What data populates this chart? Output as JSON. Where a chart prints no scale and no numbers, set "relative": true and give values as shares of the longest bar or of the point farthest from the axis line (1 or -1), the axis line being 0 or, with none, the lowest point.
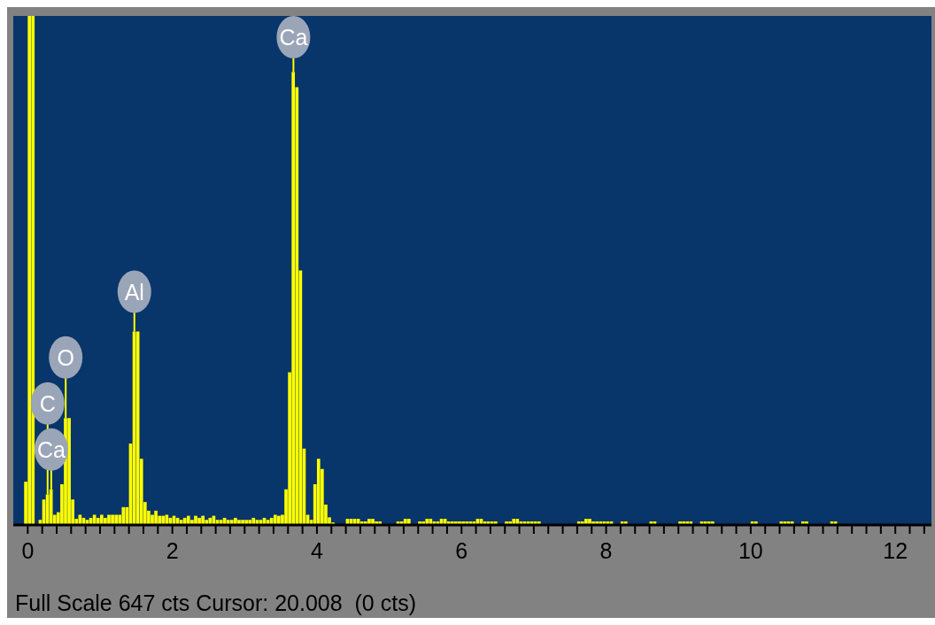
{
  "chart_data": {
    "type": "bar",
    "relative": true,
    "color": "#ffff00",
    "x": [
      -0.025,
      0.025,
      0.075,
      0.125,
      0.175,
      0.225,
      0.275,
      0.325,
      0.375,
      0.425,
      0.475,
      0.525,
      0.575,
      0.625,
      0.675,
      0.725,
      0.775,
      0.825,
      0.875,
      0.925,
      0.975,
      1.025,
      1.075,
      1.125,
      1.175,
      1.225,
      1.275,
      1.325,
      1.375,
      1.425,
      1.475,
      1.525,
      1.575,
      1.625,
      1.675,
      1.725,
      1.775,
      1.825,
      1.875,
      1.925,
      1.975,
      2.025,
      2.075,
      2.125,
      2.175,
      2.225,
      2.275,
      2.325,
      2.375,
      2.425,
      2.475,
      2.525,
      2.575,
      2.625,
      2.675,
      2.725,
      2.775,
      2.825,
      2.875,
      2.925,
      2.975,
      3.025,
      3.075,
      3.125,
      3.175,
      3.225,
      3.275,
      3.325,
      3.375,
      3.425,
      3.475,
      3.525,
      3.575,
      3.625,
      3.675,
      3.725,
      3.775,
      3.825,
      3.875,
      3.925,
      3.975,
      4.025,
      4.075,
      4.125,
      4.175,
      4.225,
      4.275,
      4.325,
      4.375,
      4.425,
      4.475,
      4.525,
      4.575,
      4.625,
      4.675,
      4.725,
      4.775,
      4.825,
      4.875,
      4.925,
      4.975,
      5.025,
      5.075,
      5.125,
      5.175,
      5.225,
      5.275,
      5.325,
      5.375,
      5.425,
      5.475,
      5.525,
      5.575,
      5.625,
      5.675,
      5.725,
      5.775,
      5.825,
      5.875,
      5.925,
      5.975,
      6.025,
      6.075,
      6.125,
      6.175,
      6.225,
      6.275,
      6.325,
      6.375,
      6.425,
      6.475,
      6.525,
      6.575,
      6.625,
      6.675,
      6.725,
      6.775,
      6.825,
      6.875,
      6.925,
      6.975,
      7.025,
      7.075,
      7.125,
      7.175,
      7.225,
      7.275,
      7.325,
      7.375,
      7.425,
      7.475,
      7.525,
      7.575,
      7.625,
      7.675,
      7.725,
      7.775,
      7.825,
      7.875,
      7.925,
      7.975,
      8.025,
      8.075,
      8.125,
      8.175,
      8.225,
      8.275,
      8.325,
      8.375,
      8.425,
      8.475,
      8.525,
      8.575,
      8.625,
      8.675,
      8.725,
      8.775,
      8.825,
      8.875,
      8.925,
      8.975,
      9.025,
      9.075,
      9.125,
      9.175,
      9.225,
      9.275,
      9.325,
      9.375,
      9.425,
      9.475,
      9.525,
      9.575,
      9.625,
      9.675,
      9.725,
      9.775,
      9.825,
      9.875,
      9.925,
      9.975,
      10.025,
      10.075,
      10.125,
      10.175,
      10.225,
      10.275,
      10.325,
      10.375,
      10.425,
      10.475,
      10.525,
      10.575,
      10.625,
      10.675,
      10.725,
      10.775,
      10.825,
      10.875,
      10.925,
      10.975,
      11.025,
      11.075,
      11.125,
      11.175,
      11.225,
      11.275
    ],
    "values": [
      0.085,
      1,
      1,
      0,
      0.01,
      0.05,
      0.06,
      0.07,
      0.02,
      0.025,
      0.08,
      0.21,
      0.21,
      0.05,
      0.012,
      0.02,
      0.014,
      0.01,
      0.014,
      0.02,
      0.014,
      0.02,
      0.014,
      0.02,
      0.02,
      0.02,
      0.02,
      0.035,
      0.035,
      0.16,
      0.38,
      0.38,
      0.13,
      0.045,
      0.028,
      0.02,
      0.028,
      0.018,
      0.018,
      0.02,
      0.014,
      0.018,
      0.014,
      0.01,
      0.014,
      0.018,
      0.01,
      0.018,
      0.014,
      0.018,
      0.01,
      0.014,
      0.018,
      0.01,
      0.01,
      0.014,
      0.01,
      0.01,
      0.014,
      0.01,
      0.01,
      0.01,
      0.01,
      0.014,
      0.01,
      0.01,
      0.014,
      0.01,
      0.014,
      0.02,
      0.018,
      0.02,
      0.07,
      0.3,
      0.89,
      0.86,
      0.5,
      0.15,
      0.02,
      0.01,
      0.08,
      0.13,
      0.11,
      0.04,
      0.015,
      0.005,
      0,
      0,
      0,
      0.012,
      0.012,
      0.012,
      0.012,
      0.007,
      0.007,
      0.012,
      0.012,
      0.007,
      0.007,
      0,
      0,
      0,
      0,
      0.007,
      0.007,
      0.012,
      0.012,
      0,
      0,
      0.007,
      0.007,
      0.012,
      0.012,
      0.007,
      0.007,
      0.012,
      0.012,
      0.007,
      0.007,
      0.007,
      0.007,
      0.007,
      0.007,
      0.007,
      0.007,
      0.012,
      0.012,
      0.007,
      0.007,
      0.007,
      0.007,
      0,
      0,
      0.007,
      0.007,
      0.012,
      0.012,
      0.007,
      0.007,
      0.007,
      0.007,
      0.007,
      0.007,
      0,
      0,
      0,
      0,
      0,
      0,
      0,
      0,
      0,
      0,
      0.007,
      0.007,
      0.012,
      0.012,
      0.007,
      0.007,
      0.007,
      0.007,
      0.007,
      0.007,
      0,
      0,
      0.007,
      0.007,
      0,
      0,
      0,
      0,
      0,
      0,
      0.007,
      0.007,
      0,
      0,
      0,
      0,
      0,
      0,
      0.007,
      0.007,
      0.007,
      0.007,
      0,
      0,
      0.007,
      0.007,
      0.007,
      0.007,
      0,
      0,
      0,
      0,
      0,
      0,
      0,
      0,
      0,
      0,
      0.007,
      0.007,
      0,
      0,
      0,
      0,
      0,
      0,
      0.007,
      0.007,
      0.007,
      0.007,
      0,
      0,
      0.007,
      0.007,
      0,
      0,
      0,
      0,
      0,
      0,
      0.007,
      0.007,
      0,
      0
    ],
    "xlim": [
      -0.2,
      12.5
    ],
    "xticks": [
      0,
      {
        "value": 0.2,
        "label": null
      },
      {
        "value": 0.4,
        "label": null
      },
      {
        "value": 0.6,
        "label": null
      },
      {
        "value": 0.8,
        "label": null
      },
      {
        "value": 1,
        "label": null
      },
      {
        "value": 1.2,
        "label": null
      },
      {
        "value": 1.4,
        "label": null
      },
      {
        "value": 1.6,
        "label": null
      },
      {
        "value": 1.8,
        "label": null
      },
      2,
      {
        "value": 2.2,
        "label": null
      },
      {
        "value": 2.4,
        "label": null
      },
      {
        "value": 2.6,
        "label": null
      },
      {
        "value": 2.8,
        "label": null
      },
      {
        "value": 3,
        "label": null
      },
      {
        "value": 3.2,
        "label": null
      },
      {
        "value": 3.4,
        "label": null
      },
      {
        "value": 3.6,
        "label": null
      },
      {
        "value": 3.8,
        "label": null
      },
      4,
      {
        "value": 4.2,
        "label": null
      },
      {
        "value": 4.4,
        "label": null
      },
      {
        "value": 4.6,
        "label": null
      },
      {
        "value": 4.8,
        "label": null
      },
      {
        "value": 5,
        "label": null
      },
      {
        "value": 5.2,
        "label": null
      },
      {
        "value": 5.4,
        "label": null
      },
      {
        "value": 5.6,
        "label": null
      },
      {
        "value": 5.8,
        "label": null
      },
      6,
      {
        "value": 6.2,
        "label": null
      },
      {
        "value": 6.4,
        "label": null
      },
      {
        "value": 6.6,
        "label": null
      },
      {
        "value": 6.8,
        "label": null
      },
      {
        "value": 7,
        "label": null
      },
      {
        "value": 7.2,
        "label": null
      },
      {
        "value": 7.4,
        "label": null
      },
      {
        "value": 7.6,
        "label": null
      },
      {
        "value": 7.8,
        "label": null
      },
      8,
      {
        "value": 8.2,
        "label": null
      },
      {
        "value": 8.4,
        "label": null
      },
      {
        "value": 8.6,
        "label": null
      },
      {
        "value": 8.8,
        "label": null
      },
      {
        "value": 9,
        "label": null
      },
      {
        "value": 9.2,
        "label": null
      },
      {
        "value": 9.4,
        "label": null
      },
      {
        "value": 9.6,
        "label": null
      },
      {
        "value": 9.8,
        "label": null
      },
      10,
      {
        "value": 10.2,
        "label": null
      },
      {
        "value": 10.4,
        "label": null
      },
      {
        "value": 10.6,
        "label": null
      },
      {
        "value": 10.8,
        "label": null
      },
      {
        "value": 11,
        "label": null
      },
      {
        "value": 11.2,
        "label": null
      },
      {
        "value": 11.4,
        "label": null
      },
      {
        "value": 11.6,
        "label": null
      },
      {
        "value": 11.8,
        "label": null
      },
      12,
      {
        "value": 12.2,
        "label": null
      },
      {
        "value": 12.4,
        "label": null
      }
    ],
    "annotations": [
      {
        "text": "Ca",
        "x": 3.675,
        "y": 0.89
      },
      {
        "text": "Al",
        "x": 1.475,
        "y": 0.38
      },
      {
        "text": "O",
        "x": 0.525,
        "y": 0.21
      },
      {
        "text": "C",
        "x": 0.275,
        "y": 0.06
      },
      {
        "text": "Ca",
        "x": 0.325,
        "y": 0.07
      },
      "Full Scale 647 cts Cursor: 20.008  (0 cts)"
    ]
  }
}
